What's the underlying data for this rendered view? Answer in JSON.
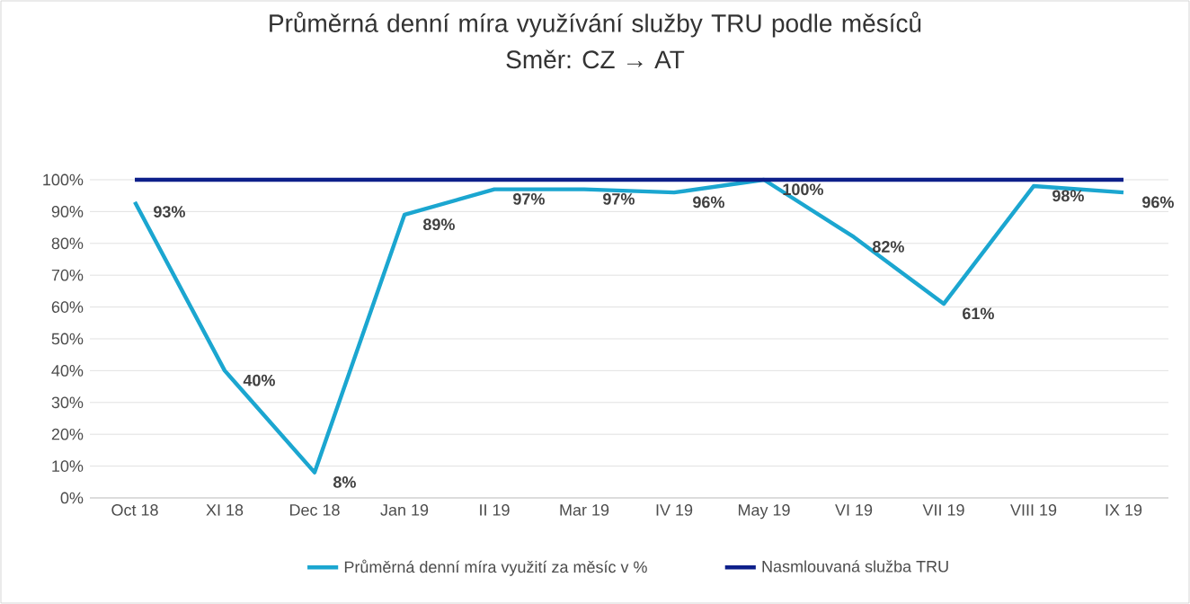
{
  "chart_data": {
    "type": "line",
    "title": "Průměrná denní míra využívání služby TRU podle měsíců",
    "subtitle": "Směr: CZ → AT",
    "categories": [
      "Oct 18",
      "XI 18",
      "Dec 18",
      "Jan 19",
      "II 19",
      "Mar 19",
      "IV 19",
      "May 19",
      "VI 19",
      "VII 19",
      "VIII 19",
      "IX 19"
    ],
    "series": [
      {
        "name": "Průměrná denní míra využití za měsíc v %",
        "color": "#1ba6d0",
        "values": [
          93,
          40,
          8,
          89,
          97,
          97,
          96,
          100,
          82,
          61,
          98,
          96
        ],
        "value_labels": [
          "93%",
          "40%",
          "8%",
          "89%",
          "97%",
          "97%",
          "96%",
          "100%",
          "82%",
          "61%",
          "98%",
          "96%"
        ]
      },
      {
        "name": "Nasmlouvaná služba TRU",
        "color": "#0d1f8a",
        "values": [
          100,
          100,
          100,
          100,
          100,
          100,
          100,
          100,
          100,
          100,
          100,
          100
        ]
      }
    ],
    "ylim": [
      0,
      100
    ],
    "yticks": [
      {
        "value": 0,
        "label": "0%"
      },
      {
        "value": 10,
        "label": "10%"
      },
      {
        "value": 20,
        "label": "20%"
      },
      {
        "value": 30,
        "label": "30%"
      },
      {
        "value": 40,
        "label": "40%"
      },
      {
        "value": 50,
        "label": "50%"
      },
      {
        "value": 60,
        "label": "60%"
      },
      {
        "value": 70,
        "label": "70%"
      },
      {
        "value": 80,
        "label": "80%"
      },
      {
        "value": 90,
        "label": "90%"
      },
      {
        "value": 100,
        "label": "100%"
      }
    ],
    "grid": "y",
    "legend": "bottom",
    "marker": "none",
    "line_style": "solid"
  }
}
